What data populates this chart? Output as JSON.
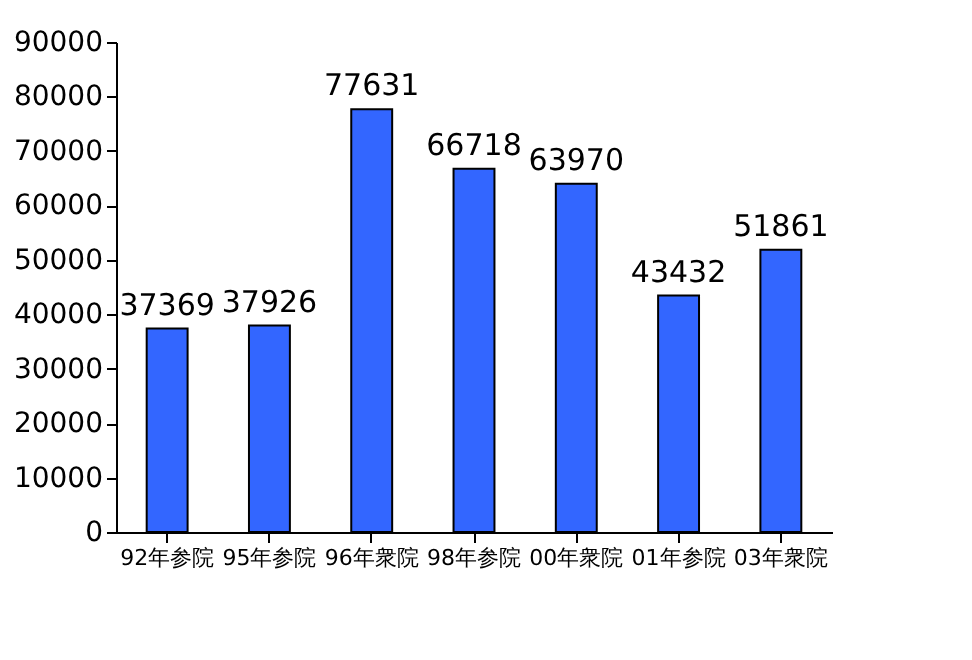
{
  "chart_data": {
    "type": "bar",
    "categories": [
      "92年参院",
      "95年参院",
      "96年衆院",
      "98年参院",
      "00年衆院",
      "01年参院",
      "03年衆院"
    ],
    "values": [
      37369,
      37926,
      77631,
      66718,
      63970,
      43432,
      51861
    ],
    "color": "#3366ff",
    "ylim": [
      0,
      90000
    ],
    "yticks": [
      0,
      10000,
      20000,
      30000,
      40000,
      50000,
      60000,
      70000,
      80000,
      90000
    ],
    "grid": false,
    "data_labels": true
  }
}
